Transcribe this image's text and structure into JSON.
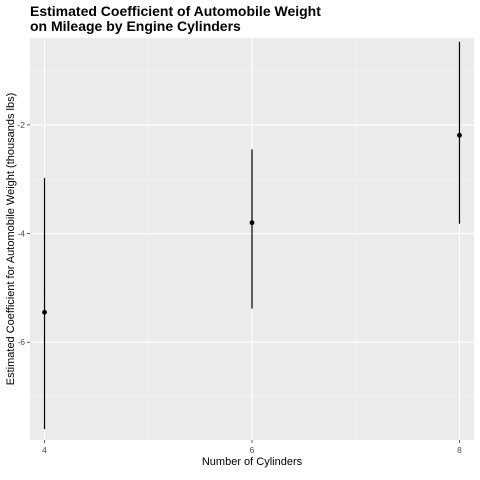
{
  "chart_data": {
    "type": "errorbar",
    "title_lines": [
      "Estimated Coefficient of Automobile Weight",
      "on Mileage by Engine Cylinders"
    ],
    "xlabel": "Number of Cylinders",
    "ylabel": "Estimated Coefficient for Automobile Weight (thousands lbs)",
    "x_ticks": [
      "4",
      "6",
      "8"
    ],
    "y_ticks": [
      "-6",
      "-4",
      "-2"
    ],
    "xlim": [
      4,
      8
    ],
    "ylim": [
      -7.8,
      -0.4
    ],
    "grid": true,
    "points": [
      {
        "x": 4,
        "y": -5.45,
        "lower": -7.6,
        "upper": -2.98
      },
      {
        "x": 6,
        "y": -3.8,
        "lower": -5.38,
        "upper": -2.45
      },
      {
        "x": 8,
        "y": -2.19,
        "lower": -3.82,
        "upper": -0.47
      }
    ]
  }
}
